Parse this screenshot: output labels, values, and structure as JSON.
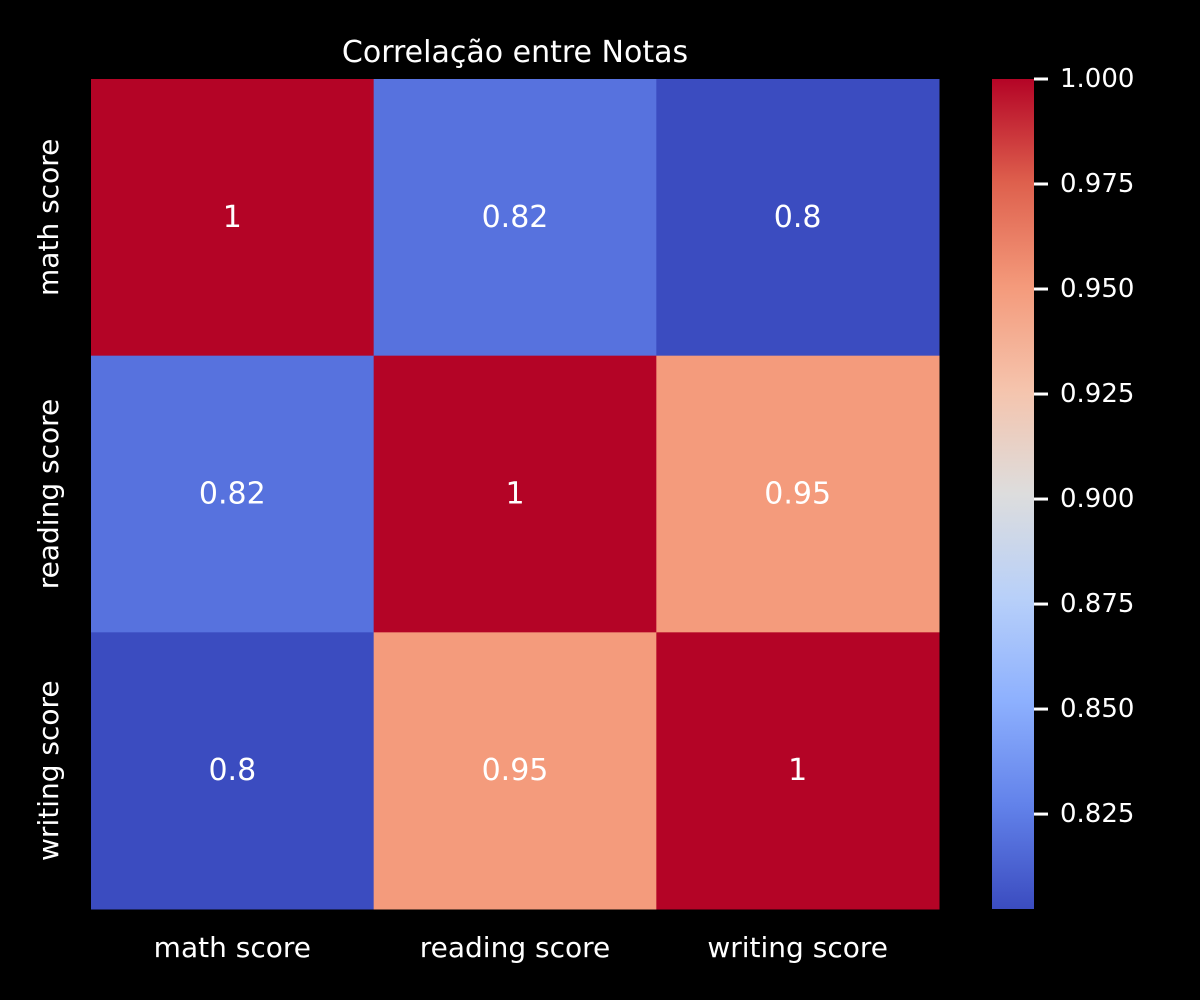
{
  "chart_data": {
    "type": "heatmap",
    "title": "Correlação entre Notas",
    "x_categories": [
      "math score",
      "reading score",
      "writing score"
    ],
    "y_categories": [
      "math score",
      "reading score",
      "writing score"
    ],
    "values": [
      [
        1,
        0.82,
        0.8
      ],
      [
        0.82,
        1,
        0.95
      ],
      [
        0.8,
        0.95,
        1
      ]
    ],
    "annotations": [
      [
        "1",
        "0.82",
        "0.8"
      ],
      [
        "0.82",
        "1",
        "0.95"
      ],
      [
        "0.8",
        "0.95",
        "1"
      ]
    ],
    "colormap": "coolwarm",
    "colorbar": {
      "range": [
        0.8024,
        1.0
      ],
      "ticks": [
        0.825,
        0.85,
        0.875,
        0.9,
        0.925,
        0.95,
        0.975,
        1.0
      ],
      "tick_labels": [
        "0.825",
        "0.850",
        "0.875",
        "0.900",
        "0.925",
        "0.950",
        "0.975",
        "1.000"
      ]
    },
    "colors": {
      "background": "#000000",
      "text": "#ffffff",
      "tick": "#ffffff"
    }
  }
}
